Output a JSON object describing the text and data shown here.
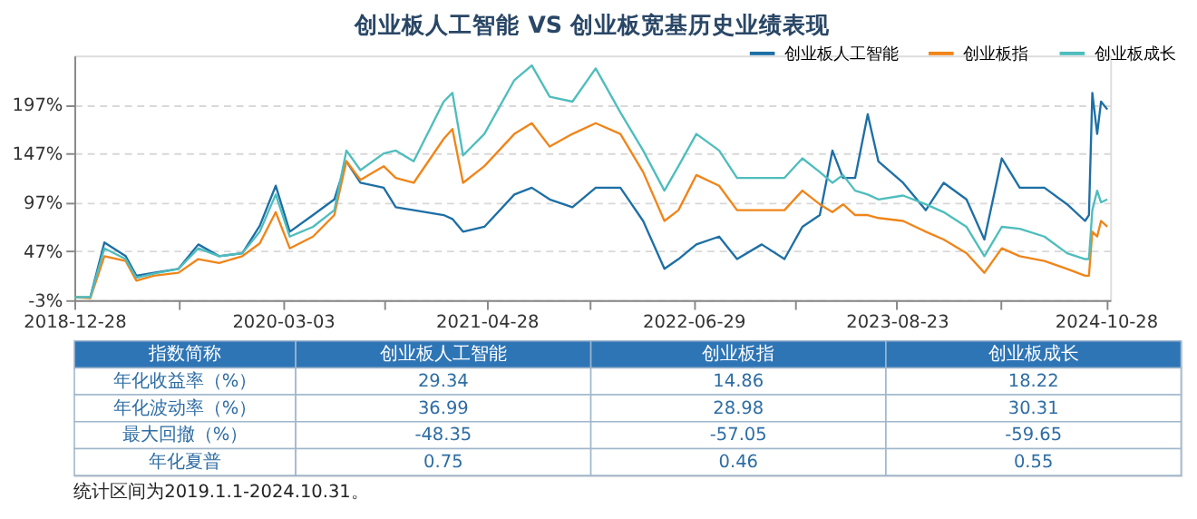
{
  "chart_data": [
    {
      "type": "line",
      "title": "创业板人工智能 VS 创业板宽基历史业绩表现",
      "x": [
        "2018-12-28",
        "2019-01-30",
        "2019-02-28",
        "2019-04-13",
        "2019-05-05",
        "2019-06-10",
        "2019-07-31",
        "2019-09-10",
        "2019-10-23",
        "2019-12-10",
        "2020-01-15",
        "2020-02-17",
        "2020-03-17",
        "2020-05-04",
        "2020-06-17",
        "2020-07-12",
        "2020-08-10",
        "2020-09-27",
        "2020-10-22",
        "2020-11-28",
        "2021-01-29",
        "2021-02-16",
        "2021-03-10",
        "2021-04-23",
        "2021-06-24",
        "2021-07-30",
        "2021-09-05",
        "2021-10-22",
        "2021-12-09",
        "2022-01-29",
        "2022-03-17",
        "2022-04-30",
        "2022-05-29",
        "2022-07-05",
        "2022-08-21",
        "2022-09-27",
        "2022-11-17",
        "2023-01-03",
        "2023-02-09",
        "2023-03-17",
        "2023-04-12",
        "2023-05-04",
        "2023-05-29",
        "2023-06-24",
        "2023-07-16",
        "2023-09-05",
        "2023-10-22",
        "2023-11-28",
        "2024-01-14",
        "2024-02-20",
        "2024-03-27",
        "2024-05-03",
        "2024-06-23",
        "2024-08-09",
        "2024-09-15",
        "2024-09-23",
        "2024-09-30",
        "2024-10-10",
        "2024-10-18",
        "2024-10-31"
      ],
      "series": [
        {
          "name": "创业板人工智能",
          "color": "#1d6fa5",
          "values": [
            0,
            0,
            56,
            42,
            22,
            25,
            29,
            54,
            42,
            45,
            73,
            114,
            67,
            84,
            100,
            139,
            117,
            112,
            92,
            89,
            84,
            80,
            67,
            72,
            105,
            112,
            100,
            92,
            112,
            112,
            78,
            29,
            39,
            54,
            62,
            39,
            54,
            39,
            72,
            84,
            150,
            122,
            122,
            187,
            139,
            117,
            89,
            117,
            100,
            59,
            142,
            112,
            112,
            95,
            78,
            84,
            209,
            167,
            200,
            192
          ]
        },
        {
          "name": "创业板指",
          "color": "#f08519",
          "values": [
            0,
            -1,
            42,
            37,
            17,
            22,
            25,
            39,
            35,
            42,
            55,
            87,
            50,
            62,
            84,
            139,
            120,
            134,
            122,
            117,
            162,
            172,
            117,
            134,
            167,
            178,
            154,
            167,
            178,
            167,
            128,
            78,
            89,
            125,
            114,
            89,
            89,
            89,
            109,
            95,
            87,
            95,
            84,
            84,
            81,
            78,
            67,
            59,
            45,
            25,
            50,
            42,
            37,
            29,
            22,
            22,
            67,
            62,
            78,
            72
          ]
        },
        {
          "name": "创业板成长",
          "color": "#4fbdbd",
          "values": [
            0,
            0,
            50,
            39,
            20,
            24,
            29,
            50,
            42,
            45,
            67,
            105,
            62,
            72,
            89,
            150,
            130,
            147,
            150,
            139,
            200,
            209,
            145,
            167,
            222,
            237,
            205,
            200,
            234,
            189,
            150,
            109,
            134,
            167,
            150,
            122,
            122,
            122,
            142,
            128,
            117,
            125,
            109,
            105,
            100,
            104,
            95,
            87,
            72,
            42,
            72,
            70,
            62,
            45,
            39,
            39,
            89,
            109,
            97,
            100
          ]
        }
      ],
      "xlim": [
        "2018-12-28",
        "2024-11-06"
      ],
      "xticks": [
        "2018-12-28",
        {
          "value": "2019-07-31",
          "label": null
        },
        "2020-03-03",
        {
          "value": "2020-09-29",
          "label": null
        },
        "2021-04-28",
        {
          "value": "2021-11-27",
          "label": null
        },
        "2022-06-29",
        {
          "value": "2023-01-25",
          "label": null
        },
        "2023-08-23",
        {
          "value": "2024-03-25",
          "label": null
        },
        "2024-10-28"
      ],
      "ylim": [
        -3,
        247
      ],
      "yticks": [
        {
          "value": -3,
          "label": "-3%"
        },
        {
          "value": 47,
          "label": "47%"
        },
        {
          "value": 97,
          "label": "97%"
        },
        {
          "value": 147,
          "label": "147%"
        },
        {
          "value": 197,
          "label": "197%"
        }
      ],
      "grid": "y",
      "legend": "top right",
      "marker": "none",
      "line_style": "solid"
    },
    {
      "type": "other",
      "categories": [
        "指数简称",
        "创业板人工智能",
        "创业板指",
        "创业板成长"
      ],
      "y_categories": [
        "年化收益率（%）",
        "年化波动率（%）",
        "最大回撤（%）",
        "年化夏普"
      ],
      "cell_labels": [
        [
          "29.34",
          "14.86",
          "18.22"
        ],
        [
          "36.99",
          "28.98",
          "30.31"
        ],
        [
          "-48.35",
          "-57.05",
          "-59.65"
        ],
        [
          "0.75",
          "0.46",
          "0.55"
        ]
      ],
      "annotations": [
        "统计区间为2019.1.1-2024.10.31。"
      ]
    }
  ]
}
